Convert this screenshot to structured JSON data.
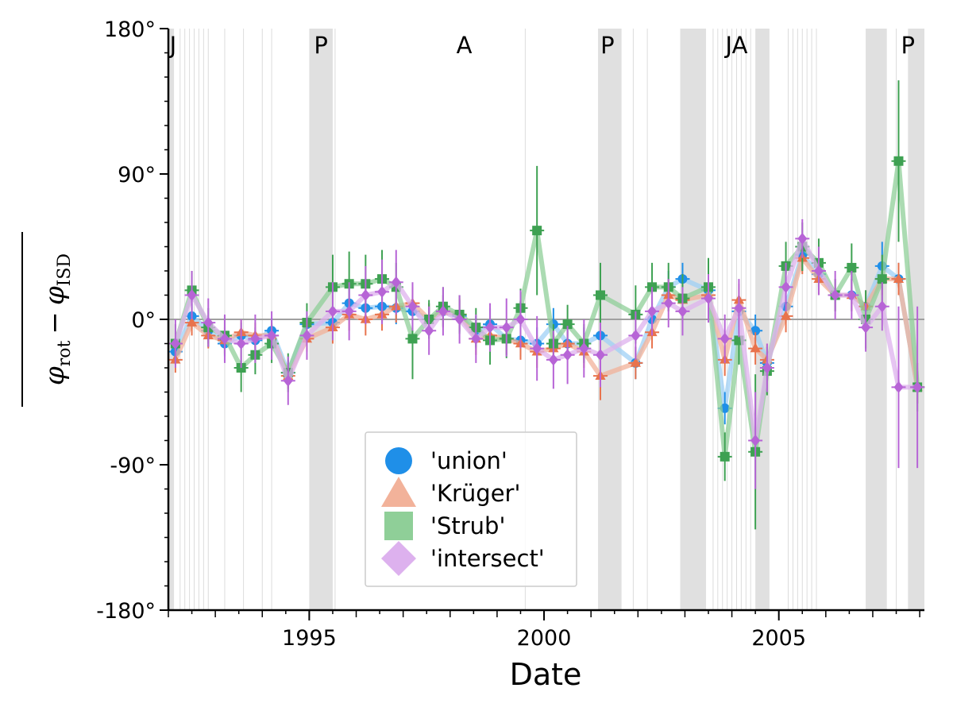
{
  "chart_data": {
    "type": "scatter",
    "title": "",
    "xlabel": "Date",
    "ylabel": "φ_rot − φ_ISD",
    "ylabel_parts": {
      "phi": "φ",
      "sub_rot": "rot",
      "minus": "−",
      "sub_isd": "ISD"
    },
    "xlim": [
      1992.0,
      2008.1
    ],
    "ylim": [
      -180,
      180
    ],
    "x_ticks": [
      {
        "value": 1995,
        "label": "1995"
      },
      {
        "value": 2000,
        "label": "2000"
      },
      {
        "value": 2005,
        "label": "2005"
      }
    ],
    "y_ticks": [
      {
        "value": 180,
        "label": "180°"
      },
      {
        "value": 90,
        "label": "90°"
      },
      {
        "value": 0,
        "label": "0°"
      },
      {
        "value": -90,
        "label": "-90°"
      },
      {
        "value": -180,
        "label": "-180°"
      }
    ],
    "y_minor_step": 15,
    "x_minor_step": 0.5,
    "zero_line": 0,
    "grid": false,
    "shaded_intervals": [
      [
        1992.0,
        1992.12
      ],
      [
        1995.0,
        1995.5
      ],
      [
        2001.15,
        2001.65
      ],
      [
        2002.9,
        2003.45
      ],
      [
        2004.5,
        2004.8
      ],
      [
        2006.85,
        2007.3
      ],
      [
        2007.75,
        2008.1
      ]
    ],
    "event_lines": [
      1992.25,
      1992.35,
      1992.45,
      1992.55,
      1992.65,
      1992.75,
      1992.85,
      1993.2,
      1993.6,
      1994.0,
      1994.2,
      1995.55,
      1999.6,
      2001.9,
      2002.2,
      2003.6,
      2003.7,
      2003.8,
      2003.9,
      2004.0,
      2004.1,
      2004.2,
      2004.3,
      2004.4,
      2005.2,
      2005.3,
      2005.4,
      2005.5,
      2005.6,
      2005.7,
      2005.8,
      2007.5
    ],
    "region_labels": [
      {
        "text": "J",
        "x": 1992.1
      },
      {
        "text": "P",
        "x": 1995.25
      },
      {
        "text": "A",
        "x": 1998.3
      },
      {
        "text": "P",
        "x": 2001.35
      },
      {
        "text": "JA",
        "x": 2004.1
      },
      {
        "text": "P",
        "x": 2007.75
      }
    ],
    "legend_position": "lower-center",
    "series": [
      {
        "name": "'union'",
        "marker": "circle",
        "color": "#1f8fe8",
        "line_color": "#9fd0f5",
        "x": [
          1992.15,
          1992.5,
          1992.85,
          1993.2,
          1993.55,
          1993.85,
          1994.2,
          1994.55,
          1994.95,
          1995.5,
          1995.85,
          1996.2,
          1996.55,
          1996.85,
          1997.2,
          1997.55,
          1997.85,
          1998.2,
          1998.55,
          1998.85,
          1999.2,
          1999.5,
          1999.85,
          2000.2,
          2000.5,
          2000.85,
          2001.2,
          2001.95,
          2002.3,
          2002.65,
          2002.95,
          2003.5,
          2003.85,
          2004.15,
          2004.5,
          2004.75,
          2005.15,
          2005.5,
          2005.85,
          2006.2,
          2006.55,
          2006.85,
          2007.2,
          2007.55,
          2007.95
        ],
        "y": [
          -20,
          2,
          -7,
          -15,
          -10,
          -13,
          -7,
          -33,
          -3,
          -2,
          10,
          7,
          8,
          7,
          5,
          0,
          5,
          2,
          -8,
          -3,
          -12,
          -13,
          -15,
          -3,
          -15,
          -15,
          -10,
          -27,
          0,
          20,
          25,
          18,
          -55,
          5,
          -7,
          -27,
          8,
          40,
          28,
          15,
          15,
          8,
          33,
          25,
          -42
        ],
        "err": [
          8,
          8,
          8,
          8,
          8,
          8,
          8,
          8,
          8,
          10,
          10,
          10,
          10,
          10,
          10,
          10,
          10,
          10,
          10,
          10,
          10,
          10,
          10,
          10,
          10,
          10,
          10,
          10,
          10,
          10,
          10,
          10,
          10,
          10,
          10,
          10,
          10,
          10,
          10,
          10,
          10,
          10,
          15,
          10,
          10
        ]
      },
      {
        "name": "'Krüger'",
        "marker": "triangle",
        "color": "#e8734d",
        "line_color": "#f2b29a",
        "x": [
          1992.15,
          1992.5,
          1992.85,
          1993.2,
          1993.55,
          1993.85,
          1994.2,
          1994.55,
          1994.95,
          1995.5,
          1995.85,
          1996.2,
          1996.55,
          1996.85,
          1997.2,
          1997.55,
          1997.85,
          1998.2,
          1998.55,
          1998.85,
          1999.2,
          1999.5,
          1999.85,
          2000.2,
          2000.5,
          2000.85,
          2001.2,
          2001.95,
          2002.3,
          2002.65,
          2002.95,
          2003.5,
          2003.85,
          2004.15,
          2004.5,
          2004.75,
          2005.15,
          2005.5,
          2005.85,
          2006.2,
          2006.55,
          2006.85,
          2007.2,
          2007.55,
          2007.95
        ],
        "y": [
          -25,
          -2,
          -10,
          -13,
          -8,
          -10,
          -10,
          -35,
          -12,
          -5,
          3,
          0,
          3,
          8,
          10,
          0,
          5,
          3,
          -12,
          -10,
          -12,
          -15,
          -20,
          -18,
          -15,
          -20,
          -35,
          -27,
          -8,
          15,
          12,
          15,
          -25,
          12,
          -18,
          -25,
          2,
          38,
          25,
          15,
          15,
          8,
          25,
          25,
          -42
        ],
        "err": [
          8,
          8,
          8,
          8,
          8,
          8,
          8,
          8,
          8,
          10,
          10,
          10,
          10,
          10,
          10,
          10,
          10,
          10,
          10,
          10,
          10,
          10,
          10,
          10,
          10,
          10,
          15,
          10,
          10,
          10,
          10,
          10,
          10,
          10,
          10,
          10,
          10,
          10,
          10,
          10,
          10,
          10,
          10,
          10,
          10
        ]
      },
      {
        "name": "'Strub'",
        "marker": "square",
        "color": "#3ea152",
        "line_color": "#8fcf98",
        "x": [
          1992.15,
          1992.5,
          1992.85,
          1993.2,
          1993.55,
          1993.85,
          1994.2,
          1994.55,
          1994.95,
          1995.5,
          1995.85,
          1996.2,
          1996.55,
          1996.85,
          1997.2,
          1997.55,
          1997.85,
          1998.2,
          1998.55,
          1998.85,
          1999.2,
          1999.5,
          1999.85,
          2000.2,
          2000.5,
          2000.85,
          2001.2,
          2001.95,
          2002.3,
          2002.65,
          2002.95,
          2003.5,
          2003.85,
          2004.15,
          2004.5,
          2004.75,
          2005.15,
          2005.5,
          2005.85,
          2006.2,
          2006.55,
          2006.85,
          2007.2,
          2007.55,
          2007.95
        ],
        "y": [
          -15,
          18,
          -5,
          -10,
          -30,
          -22,
          -15,
          -33,
          -2,
          20,
          22,
          22,
          25,
          20,
          -12,
          0,
          8,
          3,
          -5,
          -13,
          -12,
          7,
          55,
          -15,
          -3,
          -15,
          15,
          3,
          20,
          20,
          13,
          20,
          -85,
          -13,
          -82,
          -32,
          33,
          45,
          35,
          15,
          32,
          0,
          25,
          98,
          -42
        ],
        "err": [
          12,
          12,
          12,
          12,
          15,
          12,
          12,
          12,
          12,
          20,
          20,
          18,
          18,
          15,
          25,
          12,
          12,
          12,
          12,
          15,
          12,
          12,
          40,
          12,
          12,
          12,
          20,
          18,
          15,
          15,
          15,
          18,
          15,
          15,
          48,
          15,
          15,
          15,
          15,
          10,
          15,
          18,
          15,
          50,
          15
        ]
      },
      {
        "name": "'intersect'",
        "marker": "diamond",
        "color": "#b764d6",
        "line_color": "#ddb1ee",
        "x": [
          1992.15,
          1992.5,
          1992.85,
          1993.2,
          1993.55,
          1993.85,
          1994.2,
          1994.55,
          1994.95,
          1995.5,
          1995.85,
          1996.2,
          1996.55,
          1996.85,
          1997.2,
          1997.55,
          1997.85,
          1998.2,
          1998.55,
          1998.85,
          1999.2,
          1999.5,
          1999.85,
          2000.2,
          2000.5,
          2000.85,
          2001.2,
          2001.95,
          2002.3,
          2002.65,
          2002.95,
          2003.5,
          2003.85,
          2004.15,
          2004.5,
          2004.75,
          2005.15,
          2005.5,
          2005.85,
          2006.2,
          2006.55,
          2006.85,
          2007.2,
          2007.55,
          2007.95
        ],
        "y": [
          -15,
          15,
          -2,
          -12,
          -15,
          -12,
          -10,
          -38,
          -10,
          5,
          5,
          15,
          17,
          23,
          8,
          -7,
          5,
          0,
          -12,
          -5,
          -5,
          0,
          -18,
          -25,
          -22,
          -18,
          -22,
          -10,
          5,
          10,
          5,
          13,
          -12,
          7,
          -75,
          -30,
          20,
          50,
          30,
          15,
          15,
          -5,
          8,
          -42,
          -42
        ],
        "err": [
          15,
          15,
          15,
          15,
          15,
          15,
          15,
          15,
          15,
          18,
          18,
          18,
          20,
          20,
          15,
          15,
          15,
          15,
          15,
          15,
          18,
          18,
          20,
          18,
          18,
          18,
          20,
          15,
          15,
          15,
          15,
          15,
          15,
          18,
          30,
          15,
          15,
          12,
          15,
          15,
          15,
          15,
          15,
          50,
          50
        ]
      }
    ]
  }
}
